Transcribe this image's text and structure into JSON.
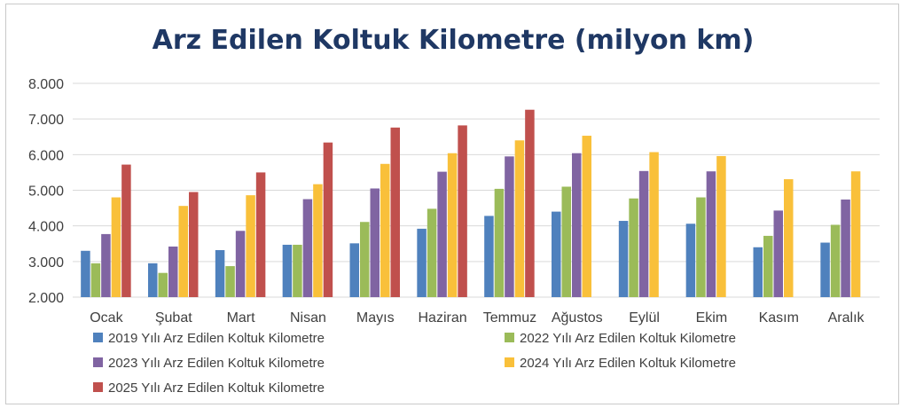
{
  "chart_data": {
    "type": "bar",
    "title": "Arz Edilen Koltuk Kilometre (milyon km)",
    "categories": [
      "Ocak",
      "Şubat",
      "Mart",
      "Nisan",
      "Mayıs",
      "Haziran",
      "Temmuz",
      "Ağustos",
      "Eylül",
      "Ekim",
      "Kasım",
      "Aralık"
    ],
    "ylim": [
      2000,
      8000
    ],
    "yticks": [
      "2.000",
      "3.000",
      "4.000",
      "5.000",
      "6.000",
      "7.000",
      "8.000"
    ],
    "ytick_values": [
      2000,
      3000,
      4000,
      5000,
      6000,
      7000,
      8000
    ],
    "grid": true,
    "legend_position": "bottom",
    "series": [
      {
        "name": "2019 Yılı Arz Edilen Koltuk Kilometre",
        "color": "#4f81bd",
        "values": [
          3300,
          2950,
          3320,
          3470,
          3510,
          3920,
          4280,
          4400,
          4140,
          4060,
          3400,
          3530
        ]
      },
      {
        "name": "2022 Yılı Arz Edilen Koltuk Kilometre",
        "color": "#9bbb59",
        "values": [
          2950,
          2680,
          2870,
          3470,
          4110,
          4480,
          5040,
          5100,
          4770,
          4800,
          3720,
          4030
        ]
      },
      {
        "name": "2023 Yılı Arz Edilen Koltuk Kilometre",
        "color": "#8064a2",
        "values": [
          3770,
          3420,
          3860,
          4750,
          5050,
          5520,
          5950,
          6040,
          5540,
          5530,
          4430,
          4740
        ]
      },
      {
        "name": "2024 Yılı Arz Edilen Koltuk Kilometre",
        "color": "#f9c03a",
        "values": [
          4800,
          4560,
          4860,
          5170,
          5740,
          6040,
          6400,
          6530,
          6070,
          5960,
          5310,
          5530
        ]
      },
      {
        "name": "2025 Yılı Arz Edilen Koltuk Kilometre",
        "color": "#c0504d",
        "values": [
          5720,
          4950,
          5500,
          6340,
          6760,
          6820,
          7260,
          null,
          null,
          null,
          null,
          null
        ]
      }
    ]
  }
}
